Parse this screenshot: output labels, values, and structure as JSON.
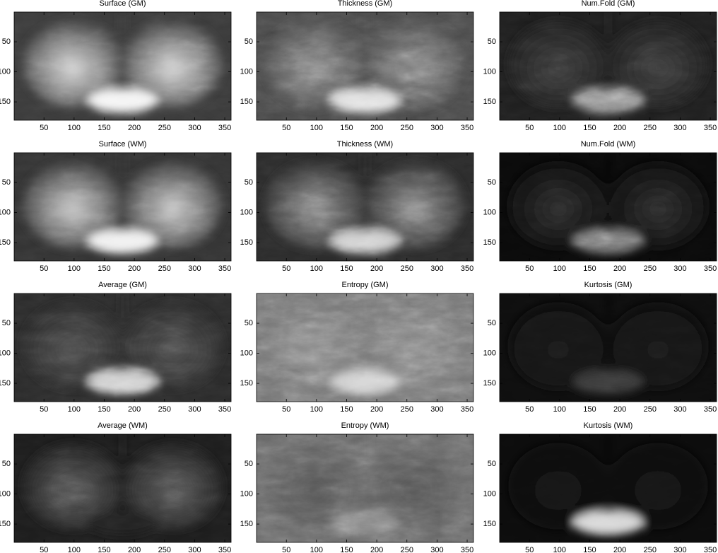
{
  "chart_data": [
    {
      "type": "image",
      "title": "Surface (GM)",
      "xlim": [
        0.5,
        360.5
      ],
      "ylim": [
        180.5,
        0.5
      ],
      "xticks": [
        50,
        100,
        150,
        200,
        250,
        300,
        350
      ],
      "yticks": [
        50,
        100,
        150
      ]
    },
    {
      "type": "image",
      "title": "Thickness (GM)",
      "xlim": [
        0.5,
        360.5
      ],
      "ylim": [
        180.5,
        0.5
      ],
      "xticks": [
        50,
        100,
        150,
        200,
        250,
        300,
        350
      ],
      "yticks": [
        50,
        100,
        150
      ]
    },
    {
      "type": "image",
      "title": "Num.Fold (GM)",
      "xlim": [
        0.5,
        360.5
      ],
      "ylim": [
        180.5,
        0.5
      ],
      "xticks": [
        50,
        100,
        150,
        200,
        250,
        300,
        350
      ],
      "yticks": [
        50,
        100,
        150
      ]
    },
    {
      "type": "image",
      "title": "Surface (WM)",
      "xlim": [
        0.5,
        360.5
      ],
      "ylim": [
        180.5,
        0.5
      ],
      "xticks": [
        50,
        100,
        150,
        200,
        250,
        300,
        350
      ],
      "yticks": [
        50,
        100,
        150
      ]
    },
    {
      "type": "image",
      "title": "Thickness (WM)",
      "xlim": [
        0.5,
        360.5
      ],
      "ylim": [
        180.5,
        0.5
      ],
      "xticks": [
        50,
        100,
        150,
        200,
        250,
        300,
        350
      ],
      "yticks": [
        50,
        100,
        150
      ]
    },
    {
      "type": "image",
      "title": "Num.Fold (WM)",
      "xlim": [
        0.5,
        360.5
      ],
      "ylim": [
        180.5,
        0.5
      ],
      "xticks": [
        50,
        100,
        150,
        200,
        250,
        300,
        350
      ],
      "yticks": [
        50,
        100,
        150
      ]
    },
    {
      "type": "image",
      "title": "Average (GM)",
      "xlim": [
        0.5,
        360.5
      ],
      "ylim": [
        180.5,
        0.5
      ],
      "xticks": [
        50,
        100,
        150,
        200,
        250,
        300,
        350
      ],
      "yticks": [
        50,
        100,
        150
      ]
    },
    {
      "type": "image",
      "title": "Entropy (GM)",
      "xlim": [
        0.5,
        360.5
      ],
      "ylim": [
        180.5,
        0.5
      ],
      "xticks": [
        50,
        100,
        150,
        200,
        250,
        300,
        350
      ],
      "yticks": [
        50,
        100,
        150
      ]
    },
    {
      "type": "image",
      "title": "Kurtosis (GM)",
      "xlim": [
        0.5,
        360.5
      ],
      "ylim": [
        180.5,
        0.5
      ],
      "xticks": [
        50,
        100,
        150,
        200,
        250,
        300,
        350
      ],
      "yticks": [
        50,
        100,
        150
      ]
    },
    {
      "type": "image",
      "title": "Average (WM)",
      "xlim": [
        0.5,
        360.5
      ],
      "ylim": [
        180.5,
        0.5
      ],
      "xticks": [
        50,
        100,
        150,
        200,
        250,
        300,
        350
      ],
      "yticks": [
        50,
        100,
        150
      ]
    },
    {
      "type": "image",
      "title": "Entropy (WM)",
      "xlim": [
        0.5,
        360.5
      ],
      "ylim": [
        180.5,
        0.5
      ],
      "xticks": [
        50,
        100,
        150,
        200,
        250,
        300,
        350
      ],
      "yticks": [
        50,
        100,
        150
      ]
    },
    {
      "type": "image",
      "title": "Kurtosis (WM)",
      "xlim": [
        0.5,
        360.5
      ],
      "ylim": [
        180.5,
        0.5
      ],
      "xticks": [
        50,
        100,
        150,
        200,
        250,
        300,
        350
      ],
      "yticks": [
        50,
        100,
        150
      ]
    }
  ]
}
